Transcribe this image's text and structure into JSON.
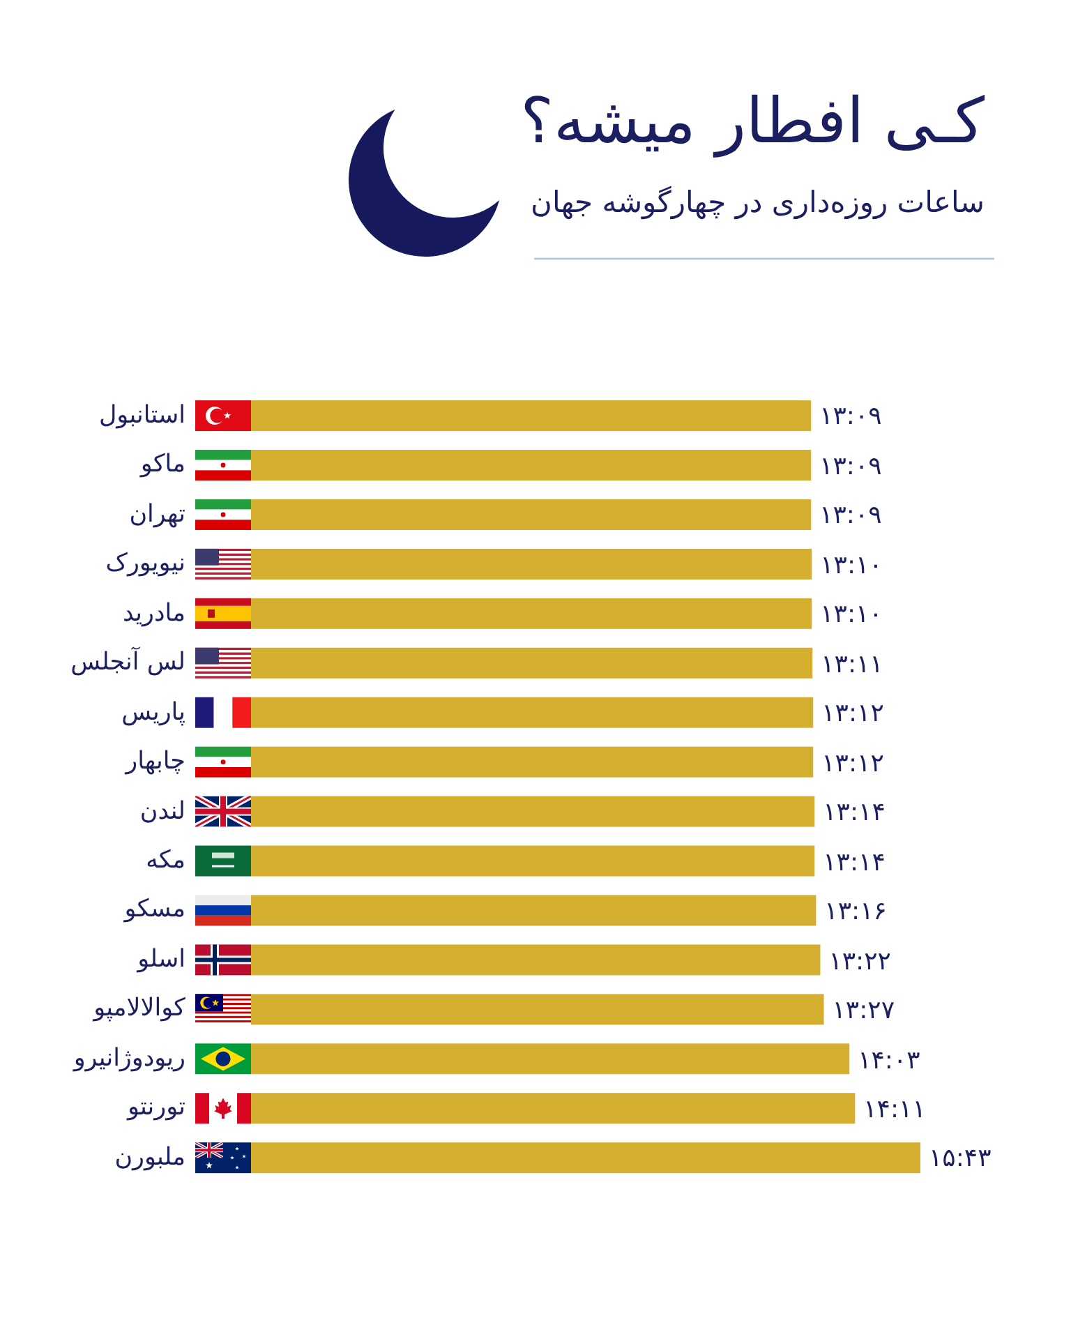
{
  "chart_data": {
    "type": "bar",
    "orientation": "horizontal",
    "title": "کـی افطار میشه؟",
    "subtitle": "ساعات روزه‌داری در چهارگوشه جهان",
    "categories": [
      "استانبول",
      "ماکو",
      "تهران",
      "نیویورک",
      "مادرید",
      "لس آنجلس",
      "پاریس",
      "چابهار",
      "لندن",
      "مکه",
      "مسکو",
      "اسلو",
      "کوالالامپو",
      "ریودوژانیرو",
      "تورنتو",
      "ملبورن"
    ],
    "values": [
      13.15,
      13.15,
      13.15,
      13.167,
      13.167,
      13.183,
      13.2,
      13.2,
      13.233,
      13.233,
      13.267,
      13.367,
      13.45,
      14.05,
      14.183,
      15.717
    ],
    "value_labels": [
      "۱۳:۰۹",
      "۱۳:۰۹",
      "۱۳:۰۹",
      "۱۳:۱۰",
      "۱۳:۱۰",
      "۱۳:۱۱",
      "۱۳:۱۲",
      "۱۳:۱۲",
      "۱۳:۱۴",
      "۱۳:۱۴",
      "۱۳:۱۶",
      "۱۳:۲۲",
      "۱۳:۲۷",
      "۱۴:۰۳",
      "۱۴:۱۱",
      "۱۵:۴۳"
    ],
    "color": "#d4ae2e",
    "tick_labels": "y"
  }
}
